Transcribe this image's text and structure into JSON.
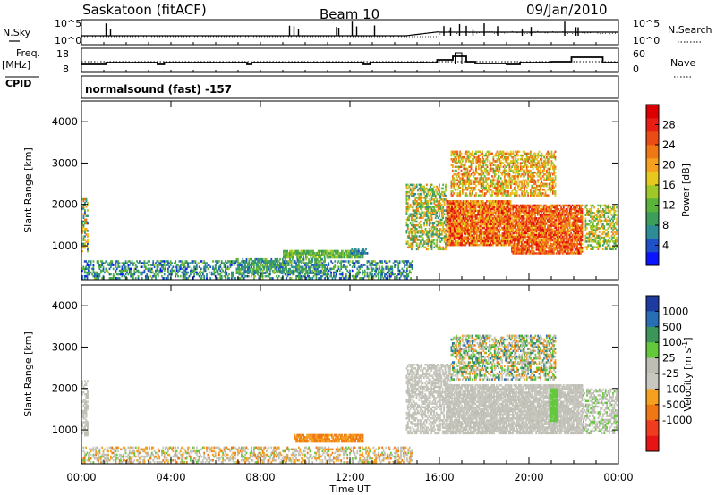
{
  "header": {
    "title": "Saskatoon (fitACF)",
    "beam": "Beam 10",
    "date": "09/Jan/2010"
  },
  "nsky_panel": {
    "left_label": "N.Sky",
    "left_ticks": [
      "10^5",
      "10^0"
    ],
    "right_ticks": [
      "10^5",
      "10^0"
    ],
    "right_label": "N.Search"
  },
  "freq_panel": {
    "left_label_1": "Freq.",
    "left_label_2": "[MHz]",
    "left_ticks": [
      "18",
      "8"
    ],
    "right_ticks": [
      "60",
      "0"
    ],
    "right_label": "Nave"
  },
  "cpid": {
    "label": "CPID",
    "value": "normalsound (fast) -157"
  },
  "chart_data": [
    {
      "type": "heatmap",
      "quantity": "power",
      "ylabel": "Slant Range [km]",
      "ylim": [
        180,
        4500
      ],
      "yticks": [
        "1000",
        "2000",
        "3000",
        "4000"
      ],
      "xlim_hours": [
        0,
        24
      ],
      "colorbar": {
        "label": "Power [dB]",
        "ticks": [
          "4",
          "8",
          "12",
          "16",
          "20",
          "24",
          "28"
        ],
        "range": [
          0,
          32
        ],
        "colors": [
          "#0a14ff",
          "#1e50c8",
          "#2e8c96",
          "#3c9e5a",
          "#5ab43c",
          "#a0c828",
          "#e6c81e",
          "#f5a01e",
          "#f07814",
          "#eb4b14",
          "#e61e14",
          "#dc0000"
        ]
      },
      "regions": [
        {
          "t": [
            0.0,
            0.3
          ],
          "r": [
            850,
            2150
          ],
          "v": [
            4,
            24
          ],
          "density": 0.55
        },
        {
          "t": [
            0.0,
            14.8
          ],
          "r": [
            200,
            650
          ],
          "v": [
            2,
            14
          ],
          "density": 0.45
        },
        {
          "t": [
            6.9,
            10.9
          ],
          "r": [
            320,
            700
          ],
          "v": [
            4,
            14
          ],
          "density": 0.55
        },
        {
          "t": [
            9.0,
            12.6
          ],
          "r": [
            700,
            900
          ],
          "v": [
            8,
            16
          ],
          "density": 0.85
        },
        {
          "t": [
            12.0,
            12.8
          ],
          "r": [
            800,
            950
          ],
          "v": [
            4,
            8
          ],
          "density": 0.6
        },
        {
          "t": [
            14.5,
            16.3
          ],
          "r": [
            900,
            2500
          ],
          "v": [
            6,
            24
          ],
          "density": 0.55
        },
        {
          "t": [
            16.3,
            19.2
          ],
          "r": [
            1000,
            2100
          ],
          "v": [
            16,
            30
          ],
          "density": 0.9
        },
        {
          "t": [
            19.2,
            22.4
          ],
          "r": [
            800,
            2000
          ],
          "v": [
            18,
            30
          ],
          "density": 0.85
        },
        {
          "t": [
            16.5,
            21.2
          ],
          "r": [
            2200,
            3300
          ],
          "v": [
            12,
            26
          ],
          "density": 0.55
        },
        {
          "t": [
            22.5,
            24.0
          ],
          "r": [
            900,
            2000
          ],
          "v": [
            8,
            22
          ],
          "density": 0.5
        }
      ]
    },
    {
      "type": "heatmap",
      "quantity": "velocity",
      "ylabel": "Slant Range [km]",
      "ylim": [
        180,
        4500
      ],
      "yticks": [
        "1000",
        "2000",
        "3000",
        "4000"
      ],
      "xlim_hours": [
        0,
        24
      ],
      "xticks": [
        "00:00",
        "04:00",
        "08:00",
        "12:00",
        "16:00",
        "20:00",
        "00:00"
      ],
      "xlabel": "Time UT",
      "colorbar": {
        "label": "Velocity [m s^-1]",
        "ticks": [
          "1000",
          "500",
          "100",
          "25",
          "-25",
          "-100",
          "-500",
          "-1000"
        ],
        "colors": [
          "#1e3ca0",
          "#286eb4",
          "#3c965a",
          "#64c83c",
          "#bebeb4",
          "#c8c8c0",
          "#f5a01e",
          "#f07814",
          "#f03c1e",
          "#e61414"
        ]
      },
      "regions": [
        {
          "t": [
            0.0,
            0.3
          ],
          "r": [
            850,
            2200
          ],
          "v": [
            4,
            5
          ],
          "density": 0.5
        },
        {
          "t": [
            0.0,
            14.8
          ],
          "r": [
            200,
            600
          ],
          "v": [
            3,
            7
          ],
          "density": 0.45
        },
        {
          "t": [
            9.5,
            12.6
          ],
          "r": [
            700,
            900
          ],
          "v": [
            6,
            7
          ],
          "density": 0.9
        },
        {
          "t": [
            14.5,
            16.5
          ],
          "r": [
            900,
            2600
          ],
          "v": [
            4,
            5
          ],
          "density": 0.6
        },
        {
          "t": [
            16.3,
            22.4
          ],
          "r": [
            900,
            2100
          ],
          "v": [
            4,
            5
          ],
          "density": 0.85
        },
        {
          "t": [
            16.5,
            21.2
          ],
          "r": [
            2200,
            3300
          ],
          "v": [
            1,
            7
          ],
          "density": 0.55
        },
        {
          "t": [
            20.9,
            21.3
          ],
          "r": [
            1200,
            2000
          ],
          "v": [
            3,
            3
          ],
          "density": 0.85
        },
        {
          "t": [
            22.4,
            24.0
          ],
          "r": [
            900,
            2000
          ],
          "v": [
            3,
            5
          ],
          "density": 0.5
        }
      ]
    }
  ],
  "colors": {
    "axes": "#000000",
    "background": "#ffffff"
  }
}
